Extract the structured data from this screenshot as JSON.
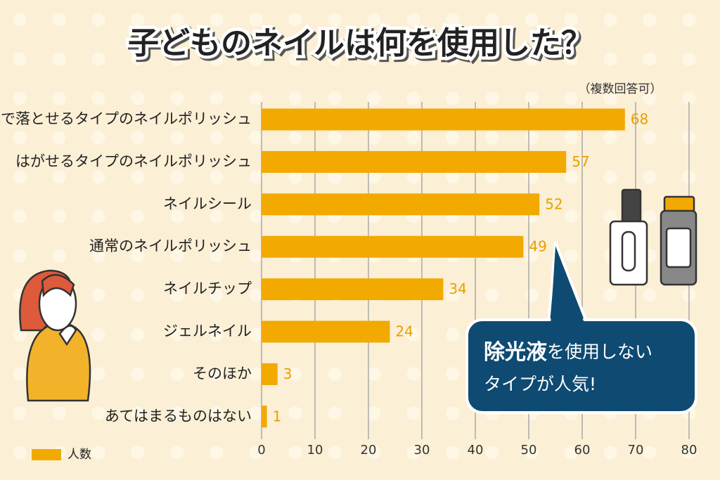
{
  "chart_data": {
    "type": "bar",
    "orientation": "horizontal",
    "title": "子どものネイルは何を使用した？",
    "subtitle": "（複数回答可）",
    "categories": [
      "水で落とせるタイプのネイルポリッシュ",
      "はがせるタイプのネイルポリッシュ",
      "ネイルシール",
      "通常のネイルポリッシュ",
      "ネイルチップ",
      "ジェルネイル",
      "そのほか",
      "あてはまるものはない"
    ],
    "series": [
      {
        "name": "人数",
        "color": "#f2a900",
        "values": [
          68,
          57,
          52,
          49,
          34,
          24,
          3,
          1
        ]
      }
    ],
    "xlim": [
      0,
      80
    ],
    "xticks": [
      0,
      10,
      20,
      30,
      40,
      50,
      60,
      70,
      80
    ],
    "grid": true,
    "legend": "bottom-left",
    "annotation": [
      "除光液",
      "を使用しない",
      "タイプが人気!"
    ]
  }
}
